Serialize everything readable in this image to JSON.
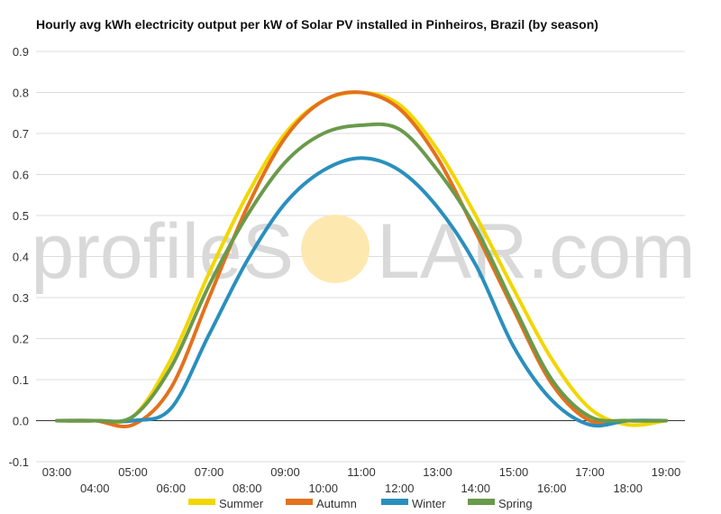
{
  "chart_data": {
    "type": "line",
    "title": "Hourly avg kWh electricity output per kW of Solar PV installed in Pinheiros, Brazil (by season)",
    "xlabel": "",
    "ylabel": "",
    "ylim": [
      -0.1,
      0.9
    ],
    "yticks": [
      "-0.1",
      "0.0",
      "0.1",
      "0.2",
      "0.3",
      "0.4",
      "0.5",
      "0.6",
      "0.7",
      "0.8",
      "0.9"
    ],
    "x": [
      "03:00",
      "04:00",
      "05:00",
      "06:00",
      "07:00",
      "08:00",
      "09:00",
      "10:00",
      "11:00",
      "12:00",
      "13:00",
      "14:00",
      "15:00",
      "16:00",
      "17:00",
      "18:00",
      "19:00"
    ],
    "grid": true,
    "legend_position": "bottom",
    "series": [
      {
        "name": "Summer",
        "color": "#f2d600",
        "values": [
          0.0,
          0.0,
          0.01,
          0.15,
          0.36,
          0.55,
          0.7,
          0.78,
          0.8,
          0.77,
          0.66,
          0.5,
          0.32,
          0.15,
          0.03,
          -0.01,
          0.0
        ]
      },
      {
        "name": "Autumn",
        "color": "#e3711d",
        "values": [
          0.0,
          0.0,
          -0.01,
          0.08,
          0.3,
          0.52,
          0.69,
          0.78,
          0.8,
          0.76,
          0.64,
          0.46,
          0.27,
          0.09,
          0.0,
          0.0,
          0.0
        ]
      },
      {
        "name": "Winter",
        "color": "#2a8fbd",
        "values": [
          0.0,
          0.0,
          0.0,
          0.03,
          0.21,
          0.39,
          0.53,
          0.61,
          0.64,
          0.61,
          0.52,
          0.38,
          0.18,
          0.05,
          -0.01,
          0.0,
          0.0
        ]
      },
      {
        "name": "Spring",
        "color": "#6a9a4b",
        "values": [
          0.0,
          0.0,
          0.01,
          0.13,
          0.33,
          0.5,
          0.63,
          0.7,
          0.72,
          0.71,
          0.61,
          0.47,
          0.28,
          0.1,
          0.01,
          0.0,
          0.0
        ]
      }
    ]
  },
  "watermark": {
    "before": "profileS",
    "middle": "O",
    "after": "LAR.com",
    "sun_color": "#fde9b0"
  }
}
